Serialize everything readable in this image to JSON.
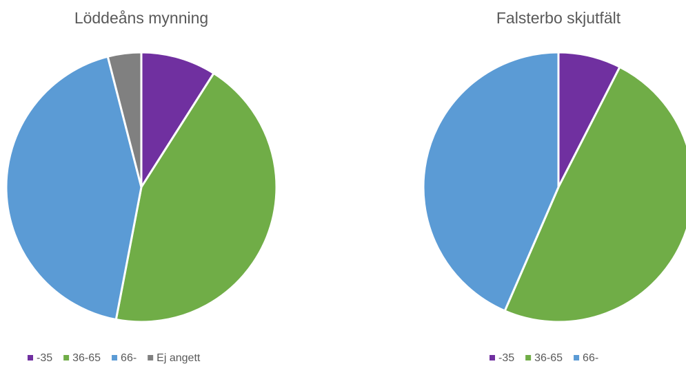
{
  "chart_data": [
    {
      "type": "pie",
      "title": "Löddeåns mynning",
      "categories": [
        "-35",
        "36-65",
        "66-",
        "Ej angett"
      ],
      "values": [
        9,
        44,
        43,
        4
      ],
      "colors": [
        "#7030a0",
        "#70ad47",
        "#5b9bd5",
        "#808080"
      ]
    },
    {
      "type": "pie",
      "title": "Falsterbo skjutfält",
      "categories": [
        "-35",
        "36-65",
        "66-"
      ],
      "values": [
        7.5,
        49,
        43.5
      ],
      "colors": [
        "#7030a0",
        "#70ad47",
        "#5b9bd5"
      ]
    }
  ]
}
